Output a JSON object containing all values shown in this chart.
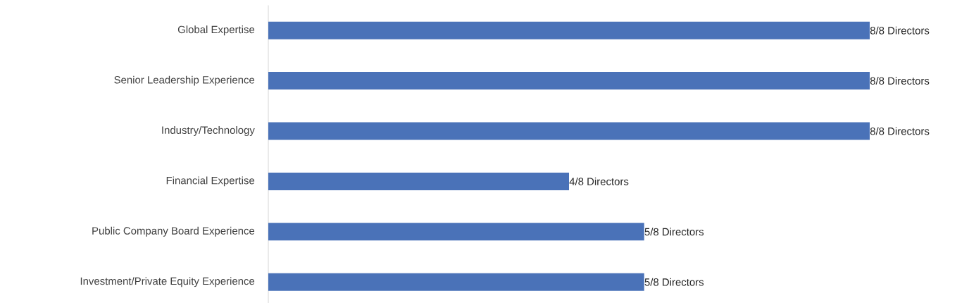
{
  "chart_data": {
    "type": "bar",
    "orientation": "horizontal",
    "categories": [
      "Global Expertise",
      "Senior Leadership Experience",
      "Industry/Technology",
      "Financial Expertise",
      "Public Company Board Experience",
      "Investment/Private Equity Experience"
    ],
    "values": [
      8,
      8,
      8,
      4,
      5,
      5
    ],
    "value_labels": [
      "8/8 Directors",
      "8/8 Directors",
      "8/8 Directors",
      "4/8 Directors",
      "5/8 Directors",
      "5/8 Directors"
    ],
    "color": "#4a72b8"
  }
}
